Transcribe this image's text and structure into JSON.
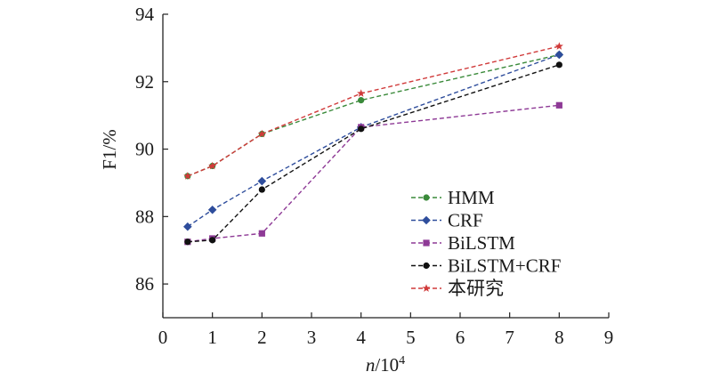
{
  "chart_data": {
    "type": "line",
    "xlabel": "n/10",
    "xlabel_sup": "4",
    "ylabel": "F1/%",
    "xlim": [
      0,
      9
    ],
    "ylim": [
      85,
      94
    ],
    "xticks": [
      0,
      1,
      2,
      3,
      4,
      5,
      6,
      7,
      8,
      9
    ],
    "yticks": [
      86,
      88,
      90,
      92,
      94
    ],
    "grid": false,
    "legend_position": "bottom-right",
    "series": [
      {
        "name": "HMM",
        "color": "#3a8a3a",
        "marker": "circle",
        "x": [
          0.5,
          1,
          2,
          4,
          8
        ],
        "y": [
          89.2,
          89.5,
          90.45,
          91.45,
          92.8
        ]
      },
      {
        "name": "CRF",
        "color": "#2e4d9c",
        "marker": "diamond",
        "x": [
          0.5,
          1,
          2,
          4,
          8
        ],
        "y": [
          87.7,
          88.2,
          89.05,
          90.65,
          92.8
        ]
      },
      {
        "name": "BiLSTM",
        "color": "#8e3a96",
        "marker": "square",
        "x": [
          0.5,
          1,
          2,
          4,
          8
        ],
        "y": [
          87.25,
          87.35,
          87.5,
          90.65,
          91.3
        ]
      },
      {
        "name": "BiLSTM+CRF",
        "color": "#111111",
        "marker": "circle",
        "x": [
          0.5,
          1,
          2,
          4,
          8
        ],
        "y": [
          87.25,
          87.3,
          88.8,
          90.6,
          92.5
        ]
      },
      {
        "name": "本研究",
        "color": "#d03a3a",
        "marker": "star",
        "x": [
          0.5,
          1,
          2,
          4,
          8
        ],
        "y": [
          89.2,
          89.5,
          90.45,
          91.65,
          93.05
        ]
      }
    ]
  }
}
